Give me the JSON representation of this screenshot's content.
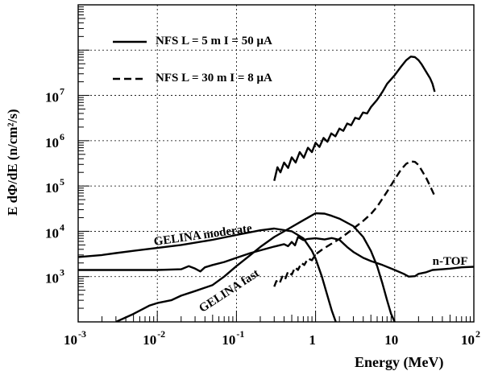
{
  "chart_data": {
    "type": "line",
    "xlabel": "Energy (MeV)",
    "ylabel": "E dΦ/dE (n/cm²/s)",
    "xscale": "log",
    "yscale": "log",
    "xlim": [
      0.001,
      100
    ],
    "ylim": [
      100,
      1000000000
    ],
    "grid": true,
    "legend_position": "top-left",
    "x_ticks": [
      {
        "base": "10",
        "exp": "-3"
      },
      {
        "base": "10",
        "exp": "-2"
      },
      {
        "base": "10",
        "exp": "-1"
      },
      {
        "base": "1",
        "exp": ""
      },
      {
        "base": "10",
        "exp": ""
      },
      {
        "base": "10",
        "exp": "2"
      }
    ],
    "y_ticks": [
      {
        "base": "10",
        "exp": "3"
      },
      {
        "base": "10",
        "exp": "4"
      },
      {
        "base": "10",
        "exp": "5"
      },
      {
        "base": "10",
        "exp": "6"
      },
      {
        "base": "10",
        "exp": "7"
      }
    ],
    "series": [
      {
        "name": "NFS L = 5 m  I = 50 μA",
        "style": "solid",
        "points": [
          [
            0.3,
            130000
          ],
          [
            0.33,
            260000
          ],
          [
            0.36,
            200000
          ],
          [
            0.4,
            330000
          ],
          [
            0.45,
            250000
          ],
          [
            0.5,
            430000
          ],
          [
            0.56,
            330000
          ],
          [
            0.63,
            560000
          ],
          [
            0.71,
            420000
          ],
          [
            0.8,
            700000
          ],
          [
            0.9,
            560000
          ],
          [
            1.0,
            900000
          ],
          [
            1.12,
            730000
          ],
          [
            1.26,
            1150000
          ],
          [
            1.41,
            950000
          ],
          [
            1.58,
            1450000
          ],
          [
            1.78,
            1250000
          ],
          [
            2.0,
            1850000
          ],
          [
            2.24,
            1650000
          ],
          [
            2.51,
            2400000
          ],
          [
            2.82,
            2200000
          ],
          [
            3.16,
            3200000
          ],
          [
            3.55,
            3000000
          ],
          [
            3.98,
            4200000
          ],
          [
            4.47,
            4000000
          ],
          [
            5.0,
            5500000
          ],
          [
            6.0,
            8000000
          ],
          [
            7.0,
            12000000
          ],
          [
            8.0,
            18000000
          ],
          [
            10.0,
            28000000
          ],
          [
            12.0,
            43000000
          ],
          [
            14.0,
            60000000
          ],
          [
            16.0,
            72000000
          ],
          [
            18.0,
            70000000
          ],
          [
            20.0,
            60000000
          ],
          [
            22.0,
            48000000
          ],
          [
            25.0,
            33000000
          ],
          [
            28.0,
            24000000
          ],
          [
            30.0,
            18000000
          ],
          [
            32.0,
            12000000
          ]
        ]
      },
      {
        "name": "NFS L = 30 m  I = 8 μA",
        "style": "dashed",
        "points": [
          [
            0.3,
            600
          ],
          [
            0.32,
            800
          ],
          [
            0.35,
            700
          ],
          [
            0.38,
            1000
          ],
          [
            0.41,
            850
          ],
          [
            0.45,
            1300
          ],
          [
            0.5,
            1100
          ],
          [
            0.55,
            1600
          ],
          [
            0.6,
            1400
          ],
          [
            0.66,
            2000
          ],
          [
            0.72,
            1800
          ],
          [
            0.8,
            2500
          ],
          [
            0.9,
            2300
          ],
          [
            1.0,
            3100
          ],
          [
            1.2,
            3900
          ],
          [
            1.5,
            5000
          ],
          [
            2.0,
            6800
          ],
          [
            2.5,
            9000
          ],
          [
            3.0,
            11500
          ],
          [
            4.0,
            17000
          ],
          [
            5.0,
            24000
          ],
          [
            6.0,
            35000
          ],
          [
            8.0,
            75000
          ],
          [
            10.0,
            140000
          ],
          [
            12.0,
            230000
          ],
          [
            14.0,
            310000
          ],
          [
            16.0,
            350000
          ],
          [
            18.0,
            340000
          ],
          [
            20.0,
            290000
          ],
          [
            22.0,
            220000
          ],
          [
            25.0,
            150000
          ],
          [
            28.0,
            100000
          ],
          [
            32.0,
            60000
          ]
        ]
      },
      {
        "name": "GELINA moderate",
        "style": "solid",
        "points": [
          [
            0.001,
            2700
          ],
          [
            0.002,
            3000
          ],
          [
            0.003,
            3300
          ],
          [
            0.005,
            3700
          ],
          [
            0.01,
            4300
          ],
          [
            0.02,
            5000
          ],
          [
            0.05,
            6500
          ],
          [
            0.1,
            8300
          ],
          [
            0.2,
            10500
          ],
          [
            0.3,
            11500
          ],
          [
            0.5,
            10000
          ],
          [
            0.7,
            7000
          ],
          [
            0.9,
            3700
          ],
          [
            1.0,
            2500
          ],
          [
            1.2,
            1000
          ],
          [
            1.4,
            400
          ],
          [
            1.6,
            180
          ],
          [
            1.8,
            100
          ]
        ]
      },
      {
        "name": "n-TOF",
        "style": "solid",
        "points": [
          [
            0.001,
            1400
          ],
          [
            0.003,
            1400
          ],
          [
            0.01,
            1400
          ],
          [
            0.02,
            1450
          ],
          [
            0.025,
            1700
          ],
          [
            0.03,
            1500
          ],
          [
            0.035,
            1300
          ],
          [
            0.04,
            1600
          ],
          [
            0.05,
            1800
          ],
          [
            0.07,
            2100
          ],
          [
            0.1,
            2600
          ],
          [
            0.15,
            3300
          ],
          [
            0.2,
            3800
          ],
          [
            0.3,
            4600
          ],
          [
            0.4,
            5200
          ],
          [
            0.45,
            4700
          ],
          [
            0.5,
            5800
          ],
          [
            0.55,
            4900
          ],
          [
            0.6,
            7500
          ],
          [
            0.7,
            6400
          ],
          [
            0.8,
            6800
          ],
          [
            1.0,
            7000
          ],
          [
            1.3,
            6600
          ],
          [
            1.6,
            7100
          ],
          [
            2.0,
            6500
          ],
          [
            2.5,
            4500
          ],
          [
            3.0,
            3500
          ],
          [
            4.0,
            2600
          ],
          [
            5.0,
            2200
          ],
          [
            7.0,
            1800
          ],
          [
            10.0,
            1400
          ],
          [
            13.0,
            1150
          ],
          [
            15.0,
            1000
          ],
          [
            18.0,
            1020
          ],
          [
            20.0,
            1150
          ],
          [
            25.0,
            1250
          ],
          [
            30.0,
            1400
          ],
          [
            40.0,
            1450
          ],
          [
            50.0,
            1500
          ],
          [
            70.0,
            1600
          ],
          [
            100.0,
            1650
          ]
        ]
      },
      {
        "name": "GELINA fast",
        "style": "solid",
        "points": [
          [
            0.003,
            100
          ],
          [
            0.005,
            150
          ],
          [
            0.008,
            230
          ],
          [
            0.01,
            260
          ],
          [
            0.015,
            300
          ],
          [
            0.02,
            380
          ],
          [
            0.03,
            480
          ],
          [
            0.05,
            650
          ],
          [
            0.07,
            1000
          ],
          [
            0.1,
            1700
          ],
          [
            0.15,
            3000
          ],
          [
            0.2,
            4500
          ],
          [
            0.3,
            7500
          ],
          [
            0.5,
            12500
          ],
          [
            0.7,
            17500
          ],
          [
            1.0,
            25000
          ],
          [
            1.3,
            24500
          ],
          [
            1.6,
            22000
          ],
          [
            2.0,
            19000
          ],
          [
            3.0,
            13000
          ],
          [
            4.0,
            7500
          ],
          [
            5.0,
            3700
          ],
          [
            6.0,
            1700
          ],
          [
            7.0,
            700
          ],
          [
            8.0,
            300
          ],
          [
            9.0,
            150
          ],
          [
            10.0,
            100
          ]
        ]
      }
    ],
    "annotations": [
      {
        "text": "GELINA moderate",
        "x": 0.009,
        "y": 5600,
        "rotate": -8
      },
      {
        "text": "GELINA fast",
        "x": 0.035,
        "y": 180,
        "rotate": -33
      },
      {
        "text": "n-TOF",
        "x": 30,
        "y": 2100,
        "rotate": 0
      }
    ]
  }
}
